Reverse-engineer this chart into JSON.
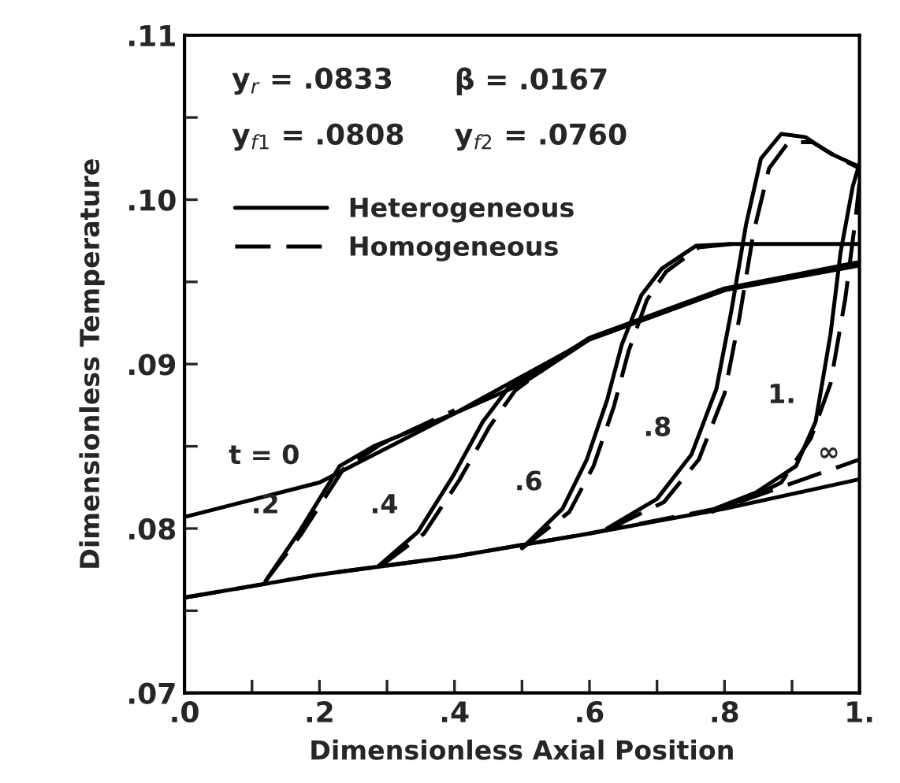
{
  "chart_data": {
    "type": "line",
    "xlabel": "Dimensionless Axial Position",
    "ylabel": "Dimensionless Temperature",
    "xlim": [
      0,
      1
    ],
    "ylim": [
      0.07,
      0.11
    ],
    "xticks": [
      {
        "value": 0,
        "label": ".0"
      },
      {
        "value": 0.1,
        "label": null
      },
      {
        "value": 0.2,
        "label": ".2"
      },
      {
        "value": 0.3,
        "label": null
      },
      {
        "value": 0.4,
        "label": ".4"
      },
      {
        "value": 0.5,
        "label": null
      },
      {
        "value": 0.6,
        "label": ".6"
      },
      {
        "value": 0.7,
        "label": null
      },
      {
        "value": 0.8,
        "label": ".8"
      },
      {
        "value": 0.9,
        "label": null
      },
      {
        "value": 1,
        "label": "1."
      }
    ],
    "yticks": [
      {
        "value": 0.07,
        "label": ".07"
      },
      {
        "value": 0.075,
        "label": null
      },
      {
        "value": 0.08,
        "label": ".08"
      },
      {
        "value": 0.085,
        "label": null
      },
      {
        "value": 0.09,
        "label": ".09"
      },
      {
        "value": 0.095,
        "label": null
      },
      {
        "value": 0.1,
        "label": ".10"
      },
      {
        "value": 0.105,
        "label": null
      },
      {
        "value": 0.11,
        "label": ".11"
      }
    ],
    "grid": false,
    "legend": "top left",
    "series": [
      {
        "name": "Heterogeneous",
        "color": "#000000",
        "line_style": "solid",
        "x": [
          0,
          0.2,
          0.4,
          0.5,
          0.6,
          0.8,
          1
        ],
        "values": [
          0.0807,
          0.0828,
          0.087,
          0.0888,
          0.0915,
          0.0945,
          0.096
        ]
      },
      {
        "name": "Homogeneous",
        "color": "#000000",
        "line_style": "dashed",
        "x": [
          0,
          0.2,
          0.4,
          0.6,
          0.8,
          1
        ],
        "values": [
          0.0758,
          0.0772,
          0.0783,
          0.0797,
          0.0813,
          0.0842
        ]
      },
      {
        "color": "#000000",
        "line_style": "solid",
        "x": [
          0,
          0.2,
          0.4,
          0.6,
          0.8,
          1
        ],
        "values": [
          0.0758,
          0.0772,
          0.0783,
          0.0797,
          0.0812,
          0.083
        ]
      },
      {
        "color": "#000000",
        "line_style": "solid",
        "x": [
          0.12,
          0.17,
          0.2,
          0.23,
          0.28,
          0.4,
          0.6,
          0.8,
          1
        ],
        "values": [
          0.0768,
          0.0798,
          0.0818,
          0.0838,
          0.085,
          0.087,
          0.0915,
          0.0945,
          0.0962
        ]
      },
      {
        "color": "#000000",
        "line_style": "dashed",
        "x": [
          0.12,
          0.172,
          0.202,
          0.235,
          0.29,
          0.4
        ],
        "values": [
          0.0768,
          0.0796,
          0.0815,
          0.0836,
          0.0851,
          0.0872
        ]
      },
      {
        "color": "#000000",
        "line_style": "solid",
        "x": [
          0.287,
          0.346,
          0.398,
          0.442,
          0.479,
          0.52,
          0.6,
          0.8,
          1
        ],
        "values": [
          0.0777,
          0.0798,
          0.0832,
          0.0865,
          0.0885,
          0.0895,
          0.0916,
          0.0946,
          0.0962
        ]
      },
      {
        "color": "#000000",
        "line_style": "dashed",
        "x": [
          0.29,
          0.355,
          0.408,
          0.452,
          0.49,
          0.53
        ],
        "values": [
          0.0777,
          0.0797,
          0.083,
          0.0862,
          0.0884,
          0.0896
        ]
      },
      {
        "color": "#000000",
        "line_style": "solid",
        "x": [
          0.5,
          0.56,
          0.596,
          0.626,
          0.648,
          0.677,
          0.707,
          0.758,
          0.81,
          1
        ],
        "values": [
          0.0788,
          0.0812,
          0.0842,
          0.0878,
          0.0912,
          0.0942,
          0.0958,
          0.0972,
          0.0973,
          0.0973
        ]
      },
      {
        "color": "#000000",
        "line_style": "dashed",
        "x": [
          0.5,
          0.57,
          0.606,
          0.636,
          0.658,
          0.685,
          0.713,
          0.762,
          0.81
        ],
        "values": [
          0.0788,
          0.081,
          0.0838,
          0.0874,
          0.0908,
          0.0939,
          0.0956,
          0.0971,
          0.0973
        ]
      },
      {
        "color": "#000000",
        "line_style": "solid",
        "x": [
          0.626,
          0.7,
          0.751,
          0.788,
          0.81,
          0.832,
          0.854,
          0.884,
          0.92,
          0.957,
          1
        ],
        "values": [
          0.08,
          0.0818,
          0.0845,
          0.0885,
          0.0932,
          0.0985,
          0.1025,
          0.104,
          0.1038,
          0.1028,
          0.102
        ]
      },
      {
        "color": "#000000",
        "line_style": "dashed",
        "x": [
          0.63,
          0.71,
          0.762,
          0.8,
          0.822,
          0.843,
          0.866,
          0.895,
          0.93,
          0.963,
          1
        ],
        "values": [
          0.08,
          0.0816,
          0.0842,
          0.0882,
          0.0928,
          0.098,
          0.1019,
          0.1035,
          0.1035,
          0.1027,
          0.1019
        ]
      },
      {
        "color": "#000000",
        "line_style": "solid",
        "x": [
          0.773,
          0.847,
          0.906,
          0.935,
          0.957,
          0.972,
          0.99,
          1
        ],
        "values": [
          0.081,
          0.0822,
          0.0838,
          0.0865,
          0.0918,
          0.0968,
          0.1008,
          0.1022
        ]
      },
      {
        "color": "#000000",
        "line_style": "dashed",
        "x": [
          0.78,
          0.855,
          0.884,
          0.928,
          0.957,
          0.979,
          0.994,
          1
        ],
        "values": [
          0.081,
          0.0822,
          0.0828,
          0.0855,
          0.0888,
          0.094,
          0.0988,
          0.101
        ]
      }
    ],
    "annotations": [
      "y$_{r}$ = .0833",
      "β = .0167",
      "y$_{f1}$ = .0808",
      "y$_{f2}$ = .0760",
      {
        "text": "t = 0",
        "x": 0.2,
        "y": 0.0828
      },
      {
        "text": ".2",
        "x": 0.17,
        "y": 0.0798
      },
      {
        "text": ".4",
        "x": 0.346,
        "y": 0.0798
      },
      {
        "text": ".6",
        "x": 0.56,
        "y": 0.0812
      },
      {
        "text": ".8",
        "x": 0.751,
        "y": 0.0845
      },
      {
        "text": "1.",
        "x": 0.935,
        "y": 0.0865
      },
      {
        "text": "∞",
        "x": 1,
        "y": 0.083
      }
    ]
  }
}
